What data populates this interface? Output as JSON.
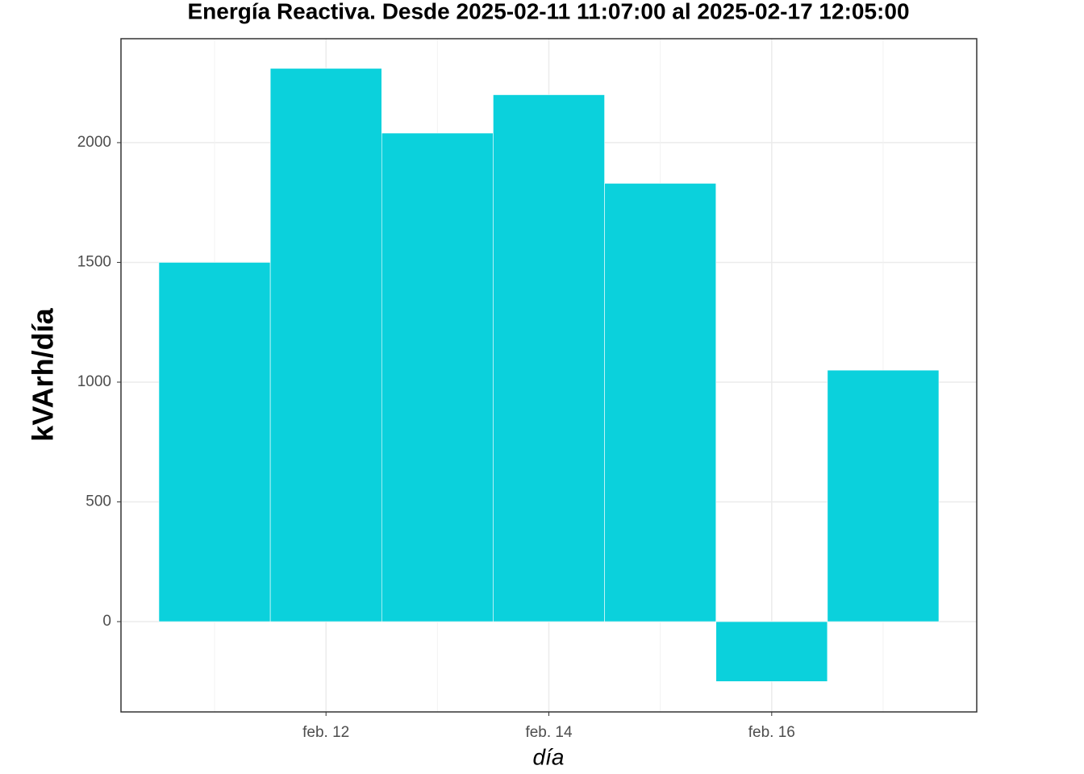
{
  "chart_data": {
    "type": "bar",
    "title": "Energía Reactiva. Desde  2025-02-11 11:07:00  al  2025-02-17 12:05:00",
    "x_label": "día",
    "y_label": "kVArh/día",
    "categories": [
      null,
      "feb. 12",
      null,
      "feb. 14",
      null,
      "feb. 16",
      null
    ],
    "values": [
      1500,
      2310,
      2040,
      2200,
      1830,
      -250,
      1050
    ],
    "color": "#0bd1dc",
    "ylim": [
      -377,
      2434
    ],
    "yticks": [
      0,
      500,
      1000,
      1500,
      2000
    ],
    "grid": true
  }
}
